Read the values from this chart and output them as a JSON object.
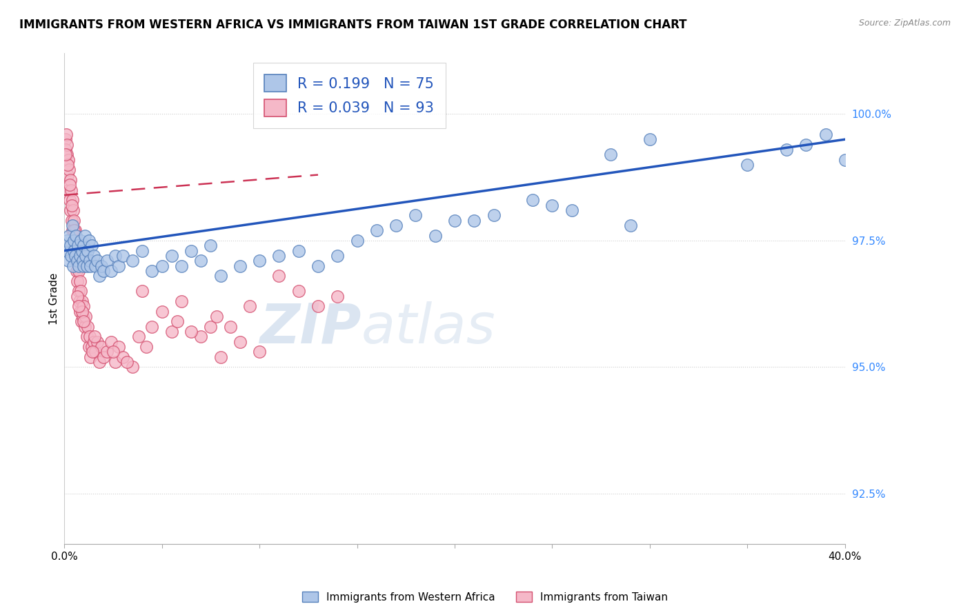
{
  "title": "IMMIGRANTS FROM WESTERN AFRICA VS IMMIGRANTS FROM TAIWAN 1ST GRADE CORRELATION CHART",
  "source": "Source: ZipAtlas.com",
  "ylabel": "1st Grade",
  "y_ticks": [
    92.5,
    95.0,
    97.5,
    100.0
  ],
  "y_tick_labels": [
    "92.5%",
    "95.0%",
    "97.5%",
    "100.0%"
  ],
  "xlim": [
    0.0,
    40.0
  ],
  "ylim": [
    91.5,
    101.2
  ],
  "blue_R": 0.199,
  "blue_N": 75,
  "pink_R": 0.039,
  "pink_N": 93,
  "blue_color": "#aec6e8",
  "pink_color": "#f5b8c8",
  "blue_edge_color": "#5580bb",
  "pink_edge_color": "#d45070",
  "blue_trend_color": "#2255bb",
  "pink_trend_color": "#cc3355",
  "legend_label_blue": "Immigrants from Western Africa",
  "legend_label_pink": "Immigrants from Taiwan",
  "watermark_zip": "ZIP",
  "watermark_atlas": "atlas",
  "blue_x": [
    0.1,
    0.15,
    0.2,
    0.25,
    0.3,
    0.35,
    0.4,
    0.45,
    0.5,
    0.5,
    0.55,
    0.6,
    0.65,
    0.7,
    0.75,
    0.8,
    0.85,
    0.9,
    0.95,
    1.0,
    1.0,
    1.05,
    1.1,
    1.15,
    1.2,
    1.25,
    1.3,
    1.35,
    1.4,
    1.5,
    1.6,
    1.7,
    1.8,
    1.9,
    2.0,
    2.2,
    2.4,
    2.6,
    2.8,
    3.0,
    3.5,
    4.0,
    4.5,
    5.0,
    5.5,
    6.0,
    6.5,
    7.0,
    7.5,
    8.0,
    9.0,
    10.0,
    11.0,
    12.0,
    13.0,
    14.0,
    15.0,
    17.0,
    19.0,
    21.0,
    22.0,
    25.0,
    28.0,
    30.0,
    35.0,
    37.0,
    38.0,
    39.0,
    40.0,
    20.0,
    16.0,
    18.0,
    24.0,
    26.0,
    29.0
  ],
  "blue_y": [
    97.3,
    97.5,
    97.1,
    97.6,
    97.4,
    97.2,
    97.8,
    97.0,
    97.5,
    97.3,
    97.2,
    97.6,
    97.1,
    97.4,
    97.0,
    97.2,
    97.5,
    97.3,
    97.1,
    97.4,
    97.0,
    97.6,
    97.2,
    97.0,
    97.3,
    97.5,
    97.1,
    97.0,
    97.4,
    97.2,
    97.0,
    97.1,
    96.8,
    97.0,
    96.9,
    97.1,
    96.9,
    97.2,
    97.0,
    97.2,
    97.1,
    97.3,
    96.9,
    97.0,
    97.2,
    97.0,
    97.3,
    97.1,
    97.4,
    96.8,
    97.0,
    97.1,
    97.2,
    97.3,
    97.0,
    97.2,
    97.5,
    97.8,
    97.6,
    97.9,
    98.0,
    98.2,
    99.2,
    99.5,
    99.0,
    99.3,
    99.4,
    99.6,
    99.1,
    97.9,
    97.7,
    98.0,
    98.3,
    98.1,
    97.8
  ],
  "pink_x": [
    0.05,
    0.08,
    0.1,
    0.12,
    0.15,
    0.18,
    0.2,
    0.22,
    0.25,
    0.28,
    0.3,
    0.32,
    0.35,
    0.38,
    0.4,
    0.42,
    0.45,
    0.48,
    0.5,
    0.52,
    0.55,
    0.58,
    0.6,
    0.62,
    0.65,
    0.68,
    0.7,
    0.72,
    0.75,
    0.78,
    0.8,
    0.82,
    0.85,
    0.88,
    0.9,
    0.95,
    1.0,
    1.05,
    1.1,
    1.15,
    1.2,
    1.25,
    1.3,
    1.35,
    1.4,
    1.5,
    1.6,
    1.7,
    1.8,
    1.9,
    2.0,
    2.2,
    2.4,
    2.6,
    2.8,
    3.0,
    3.5,
    4.0,
    4.5,
    5.0,
    5.5,
    6.0,
    7.0,
    7.5,
    8.0,
    9.0,
    10.0,
    11.0,
    12.0,
    13.0,
    14.0,
    1.45,
    1.55,
    0.92,
    0.98,
    0.68,
    0.72,
    0.58,
    0.48,
    0.38,
    0.28,
    0.18,
    0.12,
    0.08,
    2.5,
    3.2,
    3.8,
    4.2,
    5.8,
    6.5,
    7.8,
    8.5,
    9.5
  ],
  "pink_y": [
    99.5,
    99.3,
    99.6,
    99.0,
    99.2,
    98.8,
    99.1,
    98.5,
    98.9,
    98.3,
    98.7,
    98.1,
    98.5,
    97.9,
    98.3,
    97.7,
    98.1,
    97.5,
    97.9,
    97.3,
    97.7,
    97.1,
    97.5,
    96.9,
    97.3,
    96.7,
    97.1,
    96.5,
    96.9,
    96.3,
    96.7,
    96.1,
    96.5,
    95.9,
    96.3,
    96.0,
    96.2,
    95.8,
    96.0,
    95.6,
    95.8,
    95.4,
    95.6,
    95.2,
    95.4,
    95.5,
    95.3,
    95.5,
    95.1,
    95.4,
    95.2,
    95.3,
    95.5,
    95.1,
    95.4,
    95.2,
    95.0,
    96.5,
    95.8,
    96.1,
    95.7,
    96.3,
    95.6,
    95.8,
    95.2,
    95.5,
    95.3,
    96.8,
    96.5,
    96.2,
    96.4,
    95.3,
    95.6,
    96.1,
    95.9,
    96.4,
    96.2,
    97.3,
    97.7,
    98.2,
    98.6,
    99.0,
    99.4,
    99.2,
    95.3,
    95.1,
    95.6,
    95.4,
    95.9,
    95.7,
    96.0,
    95.8,
    96.2
  ]
}
